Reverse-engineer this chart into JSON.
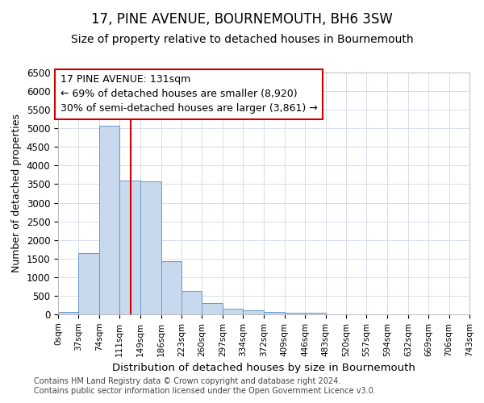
{
  "title": "17, PINE AVENUE, BOURNEMOUTH, BH6 3SW",
  "subtitle": "Size of property relative to detached houses in Bournemouth",
  "xlabel": "Distribution of detached houses by size in Bournemouth",
  "ylabel": "Number of detached properties",
  "footnote1": "Contains HM Land Registry data © Crown copyright and database right 2024.",
  "footnote2": "Contains public sector information licensed under the Open Government Licence v3.0.",
  "bar_edges": [
    0,
    37,
    74,
    111,
    149,
    186,
    223,
    260,
    297,
    334,
    372,
    409,
    446,
    483,
    520,
    557,
    594,
    632,
    669,
    706,
    743
  ],
  "bar_heights": [
    75,
    1650,
    5060,
    3600,
    3580,
    1420,
    620,
    300,
    150,
    110,
    75,
    50,
    50,
    0,
    0,
    0,
    0,
    0,
    0,
    0
  ],
  "bar_color": "#c8d9ee",
  "bar_edgecolor": "#6699cc",
  "vline_x": 131,
  "vline_color": "#cc0000",
  "ylim": [
    0,
    6500
  ],
  "xlim": [
    0,
    743
  ],
  "annotation_line1": "17 PINE AVENUE: 131sqm",
  "annotation_line2": "← 69% of detached houses are smaller (8,920)",
  "annotation_line3": "30% of semi-detached houses are larger (3,861) →",
  "annotation_box_color": "#cc0000",
  "grid_color": "#d0d8ea",
  "title_fontsize": 12,
  "subtitle_fontsize": 10,
  "xlabel_fontsize": 9.5,
  "ylabel_fontsize": 9,
  "annotation_fontsize": 9,
  "footnote_fontsize": 7,
  "ytick_fontsize": 8.5,
  "xtick_fontsize": 7.5,
  "tick_labels": [
    "0sqm",
    "37sqm",
    "74sqm",
    "111sqm",
    "149sqm",
    "186sqm",
    "223sqm",
    "260sqm",
    "297sqm",
    "334sqm",
    "372sqm",
    "409sqm",
    "446sqm",
    "483sqm",
    "520sqm",
    "557sqm",
    "594sqm",
    "632sqm",
    "669sqm",
    "706sqm",
    "743sqm"
  ]
}
